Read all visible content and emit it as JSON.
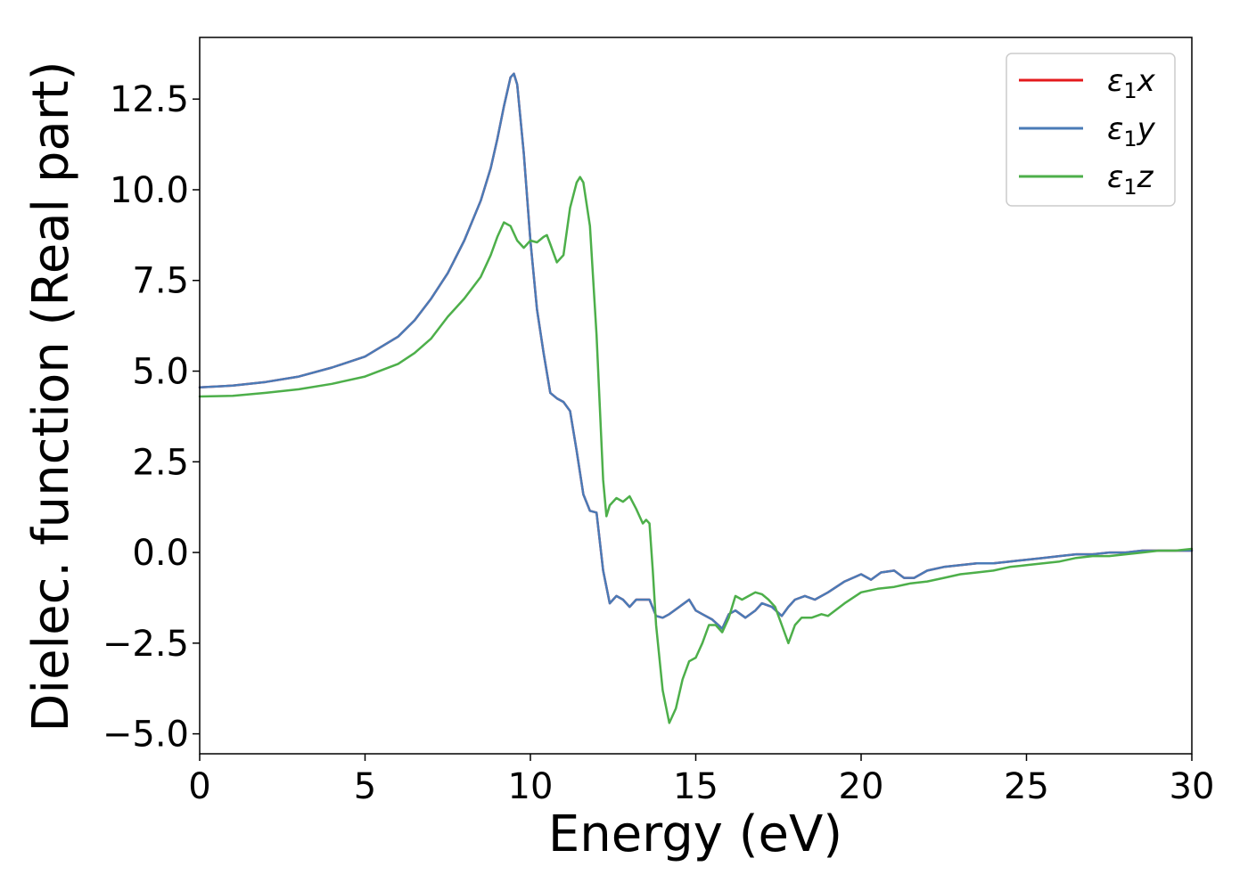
{
  "chart_data": {
    "type": "line",
    "xlabel": "Energy (eV)",
    "ylabel": "Dielec. function (Real part)",
    "xlim": [
      0,
      30
    ],
    "ylim": [
      -5.55,
      14.2
    ],
    "x_ticks": [
      0,
      5,
      10,
      15,
      20,
      25,
      30
    ],
    "y_ticks": [
      -5.0,
      -2.5,
      0.0,
      2.5,
      5.0,
      7.5,
      10.0,
      12.5
    ],
    "x_tick_labels": [
      "0",
      "5",
      "10",
      "15",
      "20",
      "25",
      "30"
    ],
    "y_tick_labels": [
      "−5.0",
      "−2.5",
      "0.0",
      "2.5",
      "5.0",
      "7.5",
      "10.0",
      "12.5"
    ],
    "grid": false,
    "legend_position": "top-right",
    "series": [
      {
        "name": "ε1x",
        "legend_symbol": "ε",
        "legend_sub": "1",
        "legend_var": "x",
        "color": "#e41a1c",
        "x": [
          0,
          1,
          2,
          3,
          4,
          5,
          6,
          6.5,
          7,
          7.5,
          8,
          8.5,
          8.8,
          9.0,
          9.2,
          9.4,
          9.5,
          9.6,
          9.8,
          10.0,
          10.2,
          10.4,
          10.6,
          10.8,
          11.0,
          11.2,
          11.4,
          11.6,
          11.8,
          12.0,
          12.2,
          12.4,
          12.6,
          12.8,
          13.0,
          13.2,
          13.4,
          13.6,
          13.8,
          14.0,
          14.2,
          14.5,
          14.8,
          15.0,
          15.2,
          15.5,
          15.8,
          16.0,
          16.2,
          16.5,
          16.8,
          17.0,
          17.3,
          17.6,
          17.8,
          18.0,
          18.3,
          18.6,
          19.0,
          19.5,
          20.0,
          20.3,
          20.6,
          21.0,
          21.3,
          21.6,
          22.0,
          22.5,
          23.0,
          23.5,
          24.0,
          24.5,
          25.0,
          25.5,
          26.0,
          26.5,
          27.0,
          27.5,
          28.0,
          28.5,
          29.0,
          29.5,
          30.0
        ],
        "values": [
          4.55,
          4.6,
          4.7,
          4.85,
          5.1,
          5.4,
          5.95,
          6.4,
          7.0,
          7.7,
          8.6,
          9.7,
          10.6,
          11.4,
          12.3,
          13.1,
          13.2,
          12.9,
          11.0,
          8.6,
          6.7,
          5.5,
          4.4,
          4.25,
          4.15,
          3.9,
          2.8,
          1.6,
          1.15,
          1.1,
          -0.5,
          -1.4,
          -1.2,
          -1.3,
          -1.5,
          -1.3,
          -1.3,
          -1.3,
          -1.75,
          -1.8,
          -1.7,
          -1.5,
          -1.3,
          -1.6,
          -1.7,
          -1.85,
          -2.1,
          -1.7,
          -1.6,
          -1.8,
          -1.6,
          -1.4,
          -1.5,
          -1.75,
          -1.5,
          -1.3,
          -1.2,
          -1.3,
          -1.1,
          -0.8,
          -0.6,
          -0.75,
          -0.55,
          -0.5,
          -0.7,
          -0.7,
          -0.5,
          -0.4,
          -0.35,
          -0.3,
          -0.3,
          -0.25,
          -0.2,
          -0.15,
          -0.1,
          -0.05,
          -0.05,
          0.0,
          0.0,
          0.05,
          0.05,
          0.05,
          0.05
        ]
      },
      {
        "name": "ε1y",
        "legend_symbol": "ε",
        "legend_sub": "1",
        "legend_var": "y",
        "color": "#4a7bb7",
        "x": [
          0,
          1,
          2,
          3,
          4,
          5,
          6,
          6.5,
          7,
          7.5,
          8,
          8.5,
          8.8,
          9.0,
          9.2,
          9.4,
          9.5,
          9.6,
          9.8,
          10.0,
          10.2,
          10.4,
          10.6,
          10.8,
          11.0,
          11.2,
          11.4,
          11.6,
          11.8,
          12.0,
          12.2,
          12.4,
          12.6,
          12.8,
          13.0,
          13.2,
          13.4,
          13.6,
          13.8,
          14.0,
          14.2,
          14.5,
          14.8,
          15.0,
          15.2,
          15.5,
          15.8,
          16.0,
          16.2,
          16.5,
          16.8,
          17.0,
          17.3,
          17.6,
          17.8,
          18.0,
          18.3,
          18.6,
          19.0,
          19.5,
          20.0,
          20.3,
          20.6,
          21.0,
          21.3,
          21.6,
          22.0,
          22.5,
          23.0,
          23.5,
          24.0,
          24.5,
          25.0,
          25.5,
          26.0,
          26.5,
          27.0,
          27.5,
          28.0,
          28.5,
          29.0,
          29.5,
          30.0
        ],
        "values": [
          4.55,
          4.6,
          4.7,
          4.85,
          5.1,
          5.4,
          5.95,
          6.4,
          7.0,
          7.7,
          8.6,
          9.7,
          10.6,
          11.4,
          12.3,
          13.1,
          13.2,
          12.9,
          11.0,
          8.6,
          6.7,
          5.5,
          4.4,
          4.25,
          4.15,
          3.9,
          2.8,
          1.6,
          1.15,
          1.1,
          -0.5,
          -1.4,
          -1.2,
          -1.3,
          -1.5,
          -1.3,
          -1.3,
          -1.3,
          -1.75,
          -1.8,
          -1.7,
          -1.5,
          -1.3,
          -1.6,
          -1.7,
          -1.85,
          -2.1,
          -1.7,
          -1.6,
          -1.8,
          -1.6,
          -1.4,
          -1.5,
          -1.75,
          -1.5,
          -1.3,
          -1.2,
          -1.3,
          -1.1,
          -0.8,
          -0.6,
          -0.75,
          -0.55,
          -0.5,
          -0.7,
          -0.7,
          -0.5,
          -0.4,
          -0.35,
          -0.3,
          -0.3,
          -0.25,
          -0.2,
          -0.15,
          -0.1,
          -0.05,
          -0.05,
          0.0,
          0.0,
          0.05,
          0.05,
          0.05,
          0.05
        ]
      },
      {
        "name": "ε1z",
        "legend_symbol": "ε",
        "legend_sub": "1",
        "legend_var": "z",
        "color": "#4daf4a",
        "x": [
          0,
          1,
          2,
          3,
          4,
          5,
          6,
          6.5,
          7,
          7.5,
          8,
          8.5,
          8.8,
          9.0,
          9.2,
          9.4,
          9.6,
          9.8,
          10.0,
          10.2,
          10.4,
          10.5,
          10.6,
          10.8,
          11.0,
          11.2,
          11.4,
          11.5,
          11.6,
          11.8,
          12.0,
          12.1,
          12.2,
          12.3,
          12.4,
          12.6,
          12.8,
          13.0,
          13.2,
          13.4,
          13.5,
          13.6,
          13.7,
          13.8,
          14.0,
          14.2,
          14.4,
          14.6,
          14.8,
          15.0,
          15.2,
          15.4,
          15.6,
          15.8,
          16.0,
          16.2,
          16.4,
          16.6,
          16.8,
          17.0,
          17.2,
          17.4,
          17.6,
          17.8,
          18.0,
          18.2,
          18.5,
          18.8,
          19.0,
          19.5,
          20.0,
          20.5,
          21.0,
          21.5,
          22.0,
          22.5,
          23.0,
          23.5,
          24.0,
          24.5,
          25.0,
          25.5,
          26.0,
          26.5,
          27.0,
          27.5,
          28.0,
          28.5,
          29.0,
          29.5,
          30.0
        ],
        "values": [
          4.3,
          4.32,
          4.4,
          4.5,
          4.65,
          4.85,
          5.2,
          5.5,
          5.9,
          6.5,
          7.0,
          7.6,
          8.2,
          8.7,
          9.1,
          9.0,
          8.6,
          8.4,
          8.6,
          8.55,
          8.7,
          8.75,
          8.5,
          8.0,
          8.2,
          9.5,
          10.2,
          10.35,
          10.2,
          9.0,
          6.0,
          4.0,
          2.0,
          1.0,
          1.3,
          1.5,
          1.4,
          1.55,
          1.2,
          0.8,
          0.9,
          0.8,
          -0.5,
          -2.0,
          -3.8,
          -4.7,
          -4.3,
          -3.5,
          -3.0,
          -2.9,
          -2.5,
          -2.0,
          -2.0,
          -2.2,
          -1.8,
          -1.2,
          -1.3,
          -1.2,
          -1.1,
          -1.15,
          -1.3,
          -1.5,
          -2.0,
          -2.5,
          -2.0,
          -1.8,
          -1.8,
          -1.7,
          -1.75,
          -1.4,
          -1.1,
          -1.0,
          -0.95,
          -0.85,
          -0.8,
          -0.7,
          -0.6,
          -0.55,
          -0.5,
          -0.4,
          -0.35,
          -0.3,
          -0.25,
          -0.15,
          -0.1,
          -0.1,
          -0.05,
          0.0,
          0.05,
          0.05,
          0.1
        ]
      }
    ]
  }
}
